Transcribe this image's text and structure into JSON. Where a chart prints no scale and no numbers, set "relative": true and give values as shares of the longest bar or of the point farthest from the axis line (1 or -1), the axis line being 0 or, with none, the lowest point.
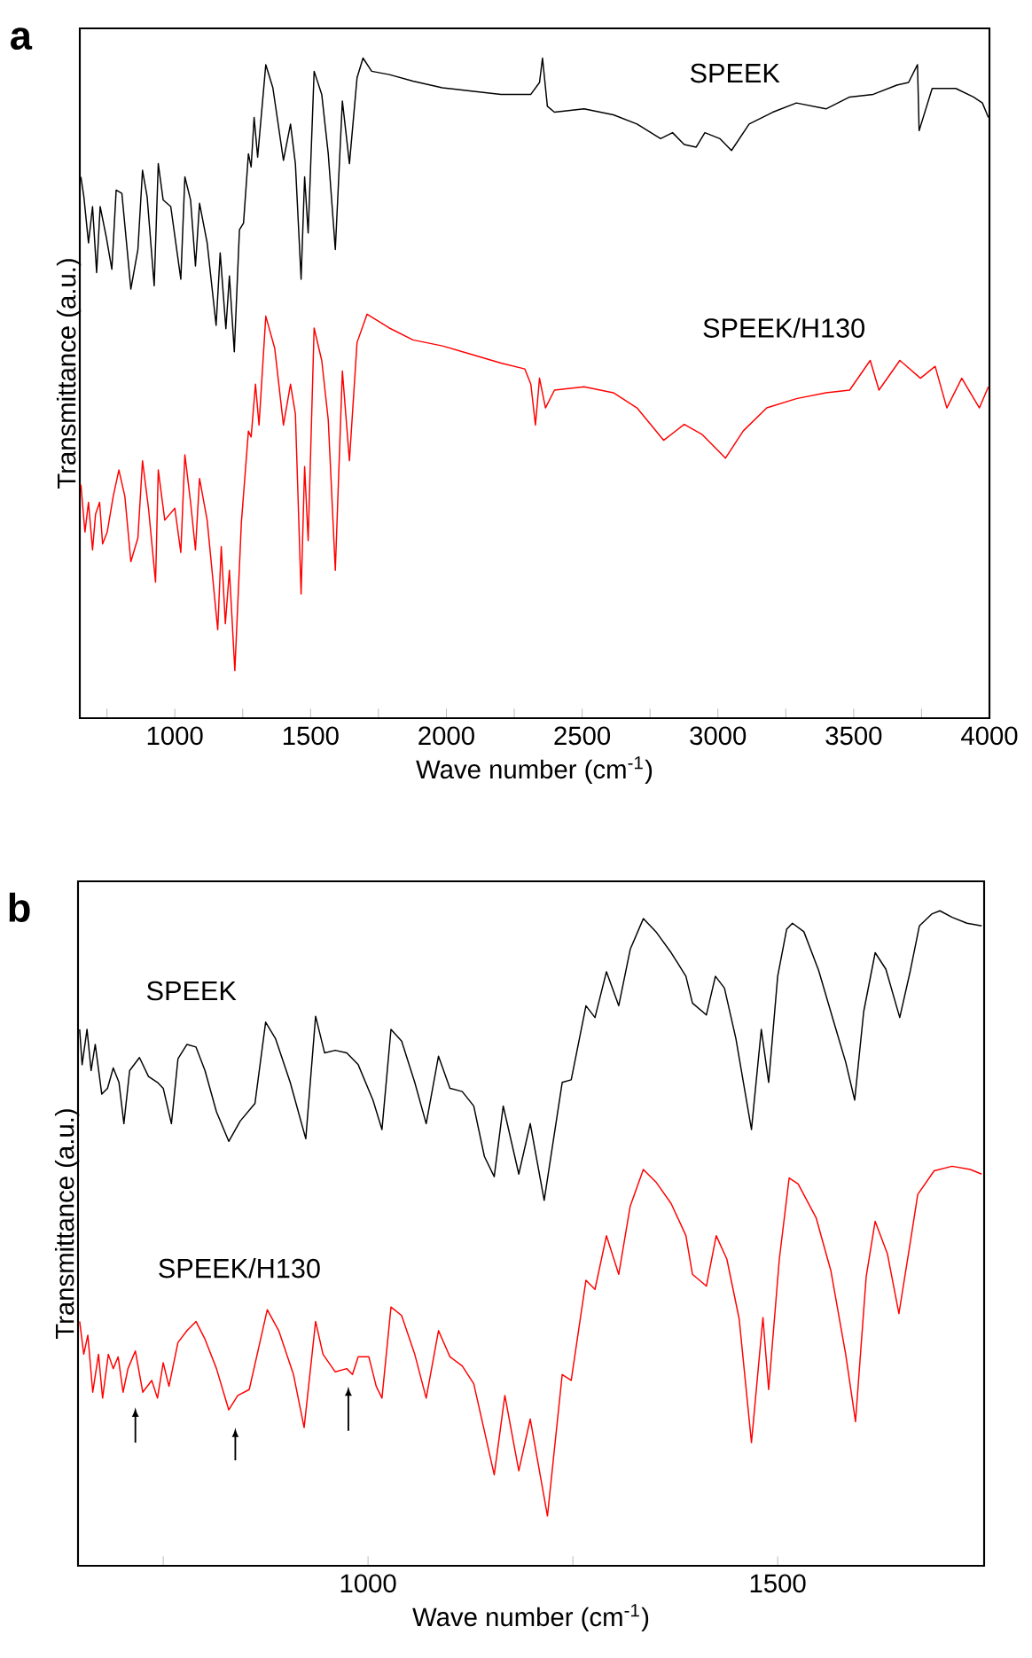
{
  "chart_data": [
    {
      "type": "line",
      "title": "a",
      "xlabel": "Wave number (cm$^{-1}$)",
      "ylabel": "Transmittance (a.u.)",
      "relative": true,
      "xlim": [
        650,
        4000
      ],
      "xticks": [
        {
          "value": 750,
          "label": null
        },
        1000,
        {
          "value": 1250,
          "label": null
        },
        1500,
        {
          "value": 1750,
          "label": null
        },
        2000,
        {
          "value": 2250,
          "label": null
        },
        2500,
        {
          "value": 2750,
          "label": null
        },
        3000,
        {
          "value": 3250,
          "label": null
        },
        3500,
        {
          "value": 3750,
          "label": null
        },
        4000
      ],
      "series": [
        {
          "name": "SPEEK",
          "color": "#000000",
          "x": [
            654,
            665,
            682,
            697,
            712,
            725,
            747,
            768,
            784,
            805,
            838,
            864,
            881,
            898,
            924,
            939,
            957,
            985,
            1022,
            1037,
            1058,
            1076,
            1091,
            1119,
            1152,
            1167,
            1188,
            1201,
            1219,
            1238,
            1253,
            1271,
            1281,
            1292,
            1305,
            1335,
            1361,
            1400,
            1426,
            1444,
            1465,
            1478,
            1491,
            1513,
            1541,
            1565,
            1591,
            1617,
            1643,
            1671,
            1693,
            1725,
            1790,
            1877,
            1985,
            2093,
            2201,
            2311,
            2343,
            2354,
            2372,
            2398,
            2507,
            2615,
            2702,
            2789,
            2833,
            2876,
            2920,
            2952,
            3007,
            3050,
            3115,
            3202,
            3289,
            3398,
            3485,
            3572,
            3659,
            3702,
            3735,
            3741,
            3789,
            3876,
            3941,
            3974,
            3996
          ],
          "values": [
            0.82,
            0.79,
            0.72,
            0.775,
            0.675,
            0.775,
            0.73,
            0.68,
            0.8,
            0.795,
            0.65,
            0.71,
            0.83,
            0.79,
            0.655,
            0.84,
            0.785,
            0.775,
            0.665,
            0.82,
            0.785,
            0.685,
            0.78,
            0.72,
            0.595,
            0.705,
            0.59,
            0.67,
            0.555,
            0.74,
            0.75,
            0.855,
            0.835,
            0.91,
            0.85,
            0.99,
            0.955,
            0.845,
            0.9,
            0.84,
            0.665,
            0.82,
            0.735,
            0.98,
            0.945,
            0.855,
            0.71,
            0.935,
            0.84,
            0.97,
            1.0,
            0.98,
            0.975,
            0.965,
            0.955,
            0.95,
            0.945,
            0.945,
            0.963,
            1.0,
            0.927,
            0.918,
            0.923,
            0.914,
            0.9,
            0.878,
            0.887,
            0.869,
            0.865,
            0.887,
            0.878,
            0.86,
            0.9,
            0.918,
            0.932,
            0.923,
            0.941,
            0.945,
            0.959,
            0.963,
            0.99,
            0.89,
            0.954,
            0.954,
            0.941,
            0.932,
            0.91
          ]
        },
        {
          "name": "SPEEK/H130",
          "color": "#ff0000",
          "x": [
            654,
            669,
            682,
            697,
            708,
            723,
            734,
            751,
            773,
            794,
            816,
            838,
            864,
            881,
            903,
            929,
            939,
            963,
            1000,
            1022,
            1037,
            1058,
            1076,
            1091,
            1119,
            1158,
            1171,
            1186,
            1201,
            1221,
            1245,
            1271,
            1281,
            1297,
            1310,
            1335,
            1368,
            1400,
            1426,
            1444,
            1465,
            1478,
            1491,
            1513,
            1541,
            1565,
            1591,
            1617,
            1643,
            1671,
            1708,
            1790,
            1877,
            1985,
            2093,
            2201,
            2289,
            2311,
            2328,
            2343,
            2365,
            2398,
            2507,
            2615,
            2702,
            2800,
            2876,
            2941,
            3028,
            3093,
            3180,
            3289,
            3398,
            3485,
            3561,
            3593,
            3670,
            3746,
            3800,
            3843,
            3898,
            3963,
            3996
          ],
          "values": [
            0.354,
            0.282,
            0.327,
            0.255,
            0.309,
            0.327,
            0.264,
            0.282,
            0.336,
            0.376,
            0.336,
            0.237,
            0.273,
            0.39,
            0.318,
            0.206,
            0.376,
            0.3,
            0.318,
            0.251,
            0.399,
            0.327,
            0.255,
            0.363,
            0.3,
            0.134,
            0.26,
            0.143,
            0.224,
            0.072,
            0.296,
            0.435,
            0.426,
            0.506,
            0.444,
            0.609,
            0.56,
            0.444,
            0.506,
            0.461,
            0.188,
            0.381,
            0.269,
            0.591,
            0.542,
            0.452,
            0.224,
            0.526,
            0.39,
            0.569,
            0.612,
            0.591,
            0.573,
            0.564,
            0.551,
            0.538,
            0.529,
            0.506,
            0.444,
            0.515,
            0.47,
            0.497,
            0.502,
            0.493,
            0.47,
            0.421,
            0.445,
            0.43,
            0.394,
            0.435,
            0.47,
            0.484,
            0.493,
            0.497,
            0.542,
            0.497,
            0.542,
            0.515,
            0.533,
            0.47,
            0.515,
            0.47,
            0.502
          ]
        }
      ]
    },
    {
      "type": "line",
      "title": "b",
      "xlabel": "Wave number (cm$^{-1}$)",
      "ylabel": "Transmittance (a.u.)",
      "relative": true,
      "xlim": [
        646,
        1752
      ],
      "xticks": [
        {
          "value": 750,
          "label": null
        },
        1000,
        {
          "value": 1250,
          "label": null
        },
        1500
      ],
      "series": [
        {
          "name": "SPEEK",
          "color": "#000000",
          "x": [
            648,
            651,
            657,
            662,
            667,
            675,
            682,
            689,
            696,
            702,
            709,
            721,
            732,
            743,
            750,
            760,
            768,
            779,
            790,
            801,
            815,
            830,
            844,
            862,
            875,
            887,
            905,
            924,
            936,
            947,
            960,
            974,
            988,
            1006,
            1017,
            1028,
            1041,
            1057,
            1071,
            1086,
            1100,
            1115,
            1129,
            1142,
            1154,
            1165,
            1184,
            1198,
            1215,
            1237,
            1248,
            1266,
            1277,
            1291,
            1306,
            1320,
            1336,
            1352,
            1370,
            1388,
            1396,
            1413,
            1424,
            1435,
            1449,
            1468,
            1480,
            1489,
            1500,
            1511,
            1518,
            1532,
            1550,
            1569,
            1583,
            1594,
            1605,
            1619,
            1632,
            1649,
            1662,
            1673,
            1688,
            1698,
            1713,
            1731,
            1749
          ],
          "values": [
            0.819,
            0.765,
            0.819,
            0.756,
            0.796,
            0.72,
            0.729,
            0.76,
            0.738,
            0.675,
            0.756,
            0.776,
            0.747,
            0.738,
            0.729,
            0.675,
            0.774,
            0.796,
            0.792,
            0.756,
            0.693,
            0.648,
            0.679,
            0.706,
            0.83,
            0.805,
            0.738,
            0.652,
            0.839,
            0.783,
            0.787,
            0.783,
            0.765,
            0.711,
            0.666,
            0.819,
            0.801,
            0.738,
            0.675,
            0.778,
            0.729,
            0.724,
            0.702,
            0.625,
            0.594,
            0.702,
            0.598,
            0.675,
            0.558,
            0.738,
            0.742,
            0.855,
            0.837,
            0.907,
            0.855,
            0.941,
            0.988,
            0.967,
            0.936,
            0.9,
            0.859,
            0.841,
            0.9,
            0.882,
            0.805,
            0.666,
            0.819,
            0.738,
            0.9,
            0.972,
            0.981,
            0.968,
            0.909,
            0.828,
            0.769,
            0.711,
            0.846,
            0.936,
            0.911,
            0.837,
            0.909,
            0.977,
            0.995,
            1.0,
            0.99,
            0.981,
            0.977
          ]
        },
        {
          "name": "SPEEK/H130",
          "color": "#ff0000",
          "x": [
            648,
            653,
            658,
            664,
            671,
            676,
            683,
            689,
            695,
            701,
            707,
            716,
            725,
            736,
            743,
            750,
            757,
            768,
            779,
            790,
            801,
            815,
            830,
            841,
            855,
            877,
            891,
            909,
            922,
            936,
            945,
            960,
            974,
            981,
            988,
            1001,
            1010,
            1017,
            1028,
            1041,
            1057,
            1071,
            1086,
            1100,
            1115,
            1129,
            1142,
            1154,
            1167,
            1184,
            1198,
            1219,
            1237,
            1248,
            1266,
            1277,
            1291,
            1306,
            1320,
            1336,
            1352,
            1370,
            1388,
            1396,
            1413,
            1425,
            1438,
            1453,
            1468,
            1482,
            1489,
            1502,
            1514,
            1525,
            1547,
            1565,
            1583,
            1595,
            1608,
            1619,
            1634,
            1648,
            1662,
            1671,
            1691,
            1713,
            1735,
            1749
          ],
          "values": [
            0.373,
            0.323,
            0.352,
            0.265,
            0.323,
            0.256,
            0.323,
            0.301,
            0.319,
            0.265,
            0.301,
            0.328,
            0.265,
            0.283,
            0.256,
            0.31,
            0.274,
            0.341,
            0.359,
            0.373,
            0.346,
            0.301,
            0.238,
            0.26,
            0.269,
            0.391,
            0.359,
            0.292,
            0.211,
            0.373,
            0.323,
            0.296,
            0.301,
            0.292,
            0.319,
            0.319,
            0.274,
            0.256,
            0.395,
            0.382,
            0.323,
            0.256,
            0.359,
            0.319,
            0.305,
            0.278,
            0.206,
            0.139,
            0.26,
            0.145,
            0.224,
            0.076,
            0.292,
            0.283,
            0.436,
            0.422,
            0.504,
            0.445,
            0.549,
            0.605,
            0.585,
            0.553,
            0.504,
            0.445,
            0.427,
            0.504,
            0.468,
            0.377,
            0.188,
            0.379,
            0.269,
            0.468,
            0.592,
            0.583,
            0.531,
            0.45,
            0.323,
            0.22,
            0.441,
            0.526,
            0.476,
            0.385,
            0.495,
            0.567,
            0.603,
            0.61,
            0.605,
            0.598
          ]
        }
      ]
    }
  ]
}
